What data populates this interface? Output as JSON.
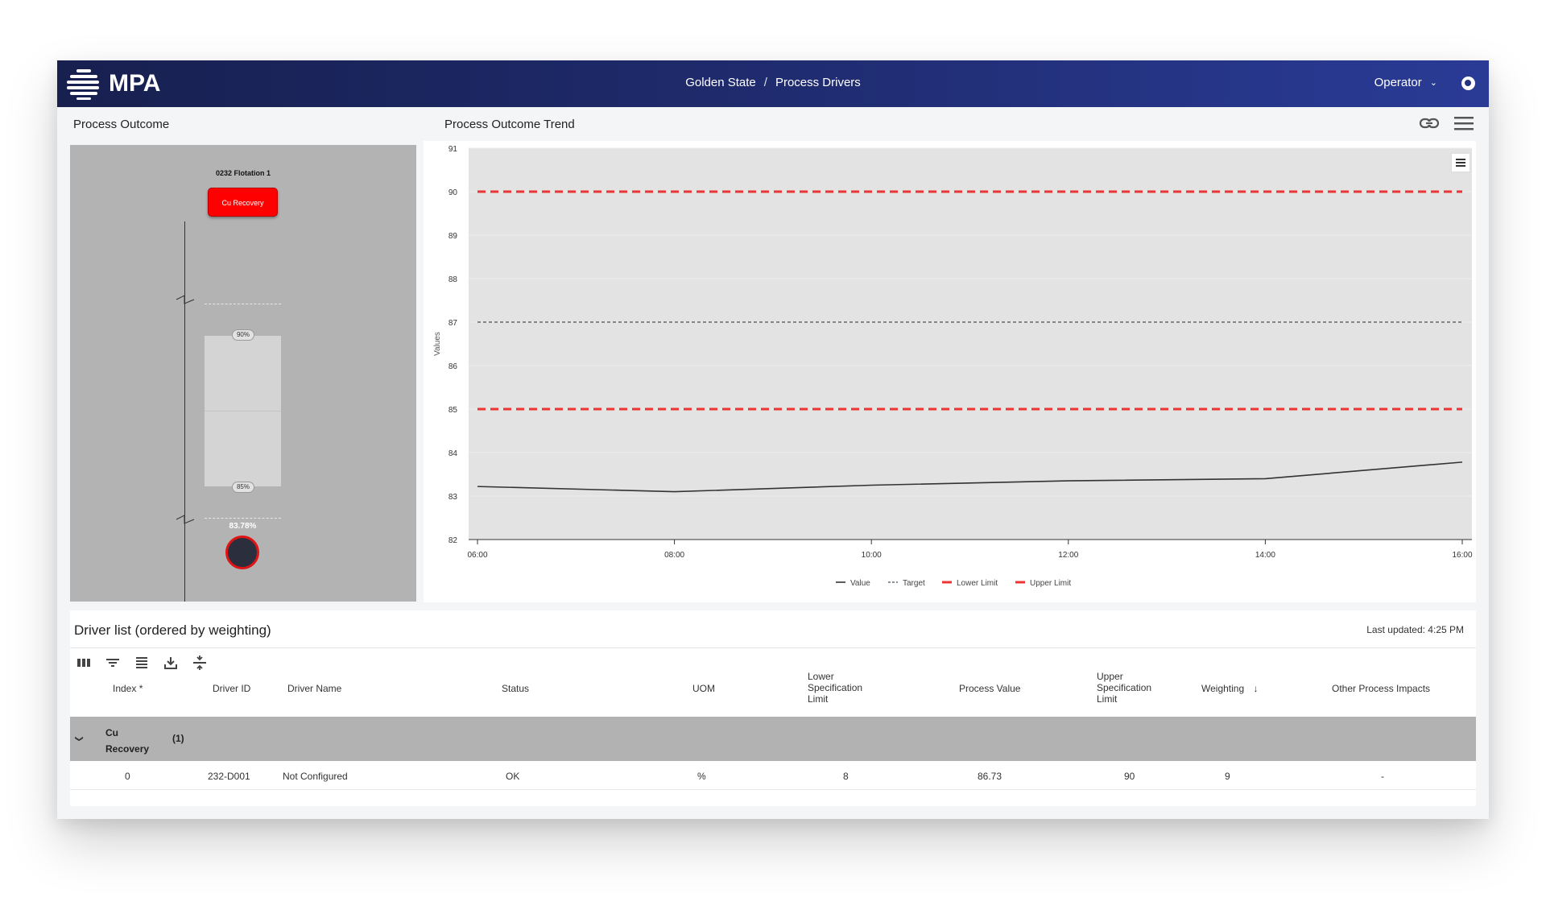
{
  "header": {
    "logo_text": "MPA",
    "breadcrumb": [
      "Golden State",
      "Process Drivers"
    ],
    "breadcrumb_sep": "/",
    "user": "Operator"
  },
  "outcome": {
    "title": "Process Outcome",
    "unit_label": "0232 Flotation 1",
    "button_label": "Cu Recovery",
    "upper_tag": "90%",
    "lower_tag": "85%",
    "value_label": "83.78%",
    "status_color": "#ff0000"
  },
  "trend": {
    "title": "Process Outcome Trend",
    "icons": [
      "link-icon",
      "menu-icon"
    ]
  },
  "chart_data": {
    "type": "line",
    "title": "",
    "xlabel": "",
    "ylabel": "Values",
    "ylim": [
      82,
      91
    ],
    "yticks": [
      "82",
      "83",
      "84",
      "85",
      "86",
      "87",
      "88",
      "89",
      "90",
      "91"
    ],
    "xticks": [
      "06:00",
      "08:00",
      "10:00",
      "12:00",
      "14:00",
      "16:00"
    ],
    "x": [
      "06:00",
      "08:00",
      "10:00",
      "12:00",
      "14:00",
      "16:00"
    ],
    "series": [
      {
        "name": "Value",
        "style": "solid",
        "color": "#333333",
        "values": [
          83.22,
          83.1,
          83.25,
          83.35,
          83.4,
          83.78
        ]
      },
      {
        "name": "Target",
        "style": "dashed",
        "color": "#44505a",
        "values": [
          87,
          87,
          87,
          87,
          87,
          87
        ]
      },
      {
        "name": "Lower Limit",
        "style": "dashed",
        "color": "#ee3333",
        "values": [
          85,
          85,
          85,
          85,
          85,
          85
        ]
      },
      {
        "name": "Upper Limit",
        "style": "dashed",
        "color": "#ee3333",
        "values": [
          90,
          90,
          90,
          90,
          90,
          90
        ]
      }
    ],
    "grid": true,
    "legend": "bottom-center"
  },
  "drivers": {
    "title": "Driver list (ordered by weighting)",
    "last_updated": "Last updated: 4:25 PM",
    "toolbar": [
      "columns-icon",
      "filter-icon",
      "density-icon",
      "download-icon",
      "expand-collapse-icon"
    ],
    "columns": {
      "index": "Index *",
      "driver_id": "Driver ID",
      "driver_name": "Driver Name",
      "status": "Status",
      "uom": "UOM",
      "lsl_1": "Lower",
      "lsl_2": "Specification",
      "lsl_3": "Limit",
      "process_value": "Process Value",
      "usl_1": "Upper",
      "usl_2": "Specification",
      "usl_3": "Limit",
      "weighting": "Weighting",
      "other": "Other Process Impacts"
    },
    "group": {
      "name_1": "Cu",
      "name_2": "Recovery",
      "count": "(1)"
    },
    "row": {
      "index": "0",
      "driver_id": "232-D001",
      "driver_name": "Not Configured",
      "status": "OK",
      "uom": "%",
      "lsl": "8",
      "process_value": "86.73",
      "usl": "90",
      "weighting": "9",
      "other": "-"
    }
  }
}
